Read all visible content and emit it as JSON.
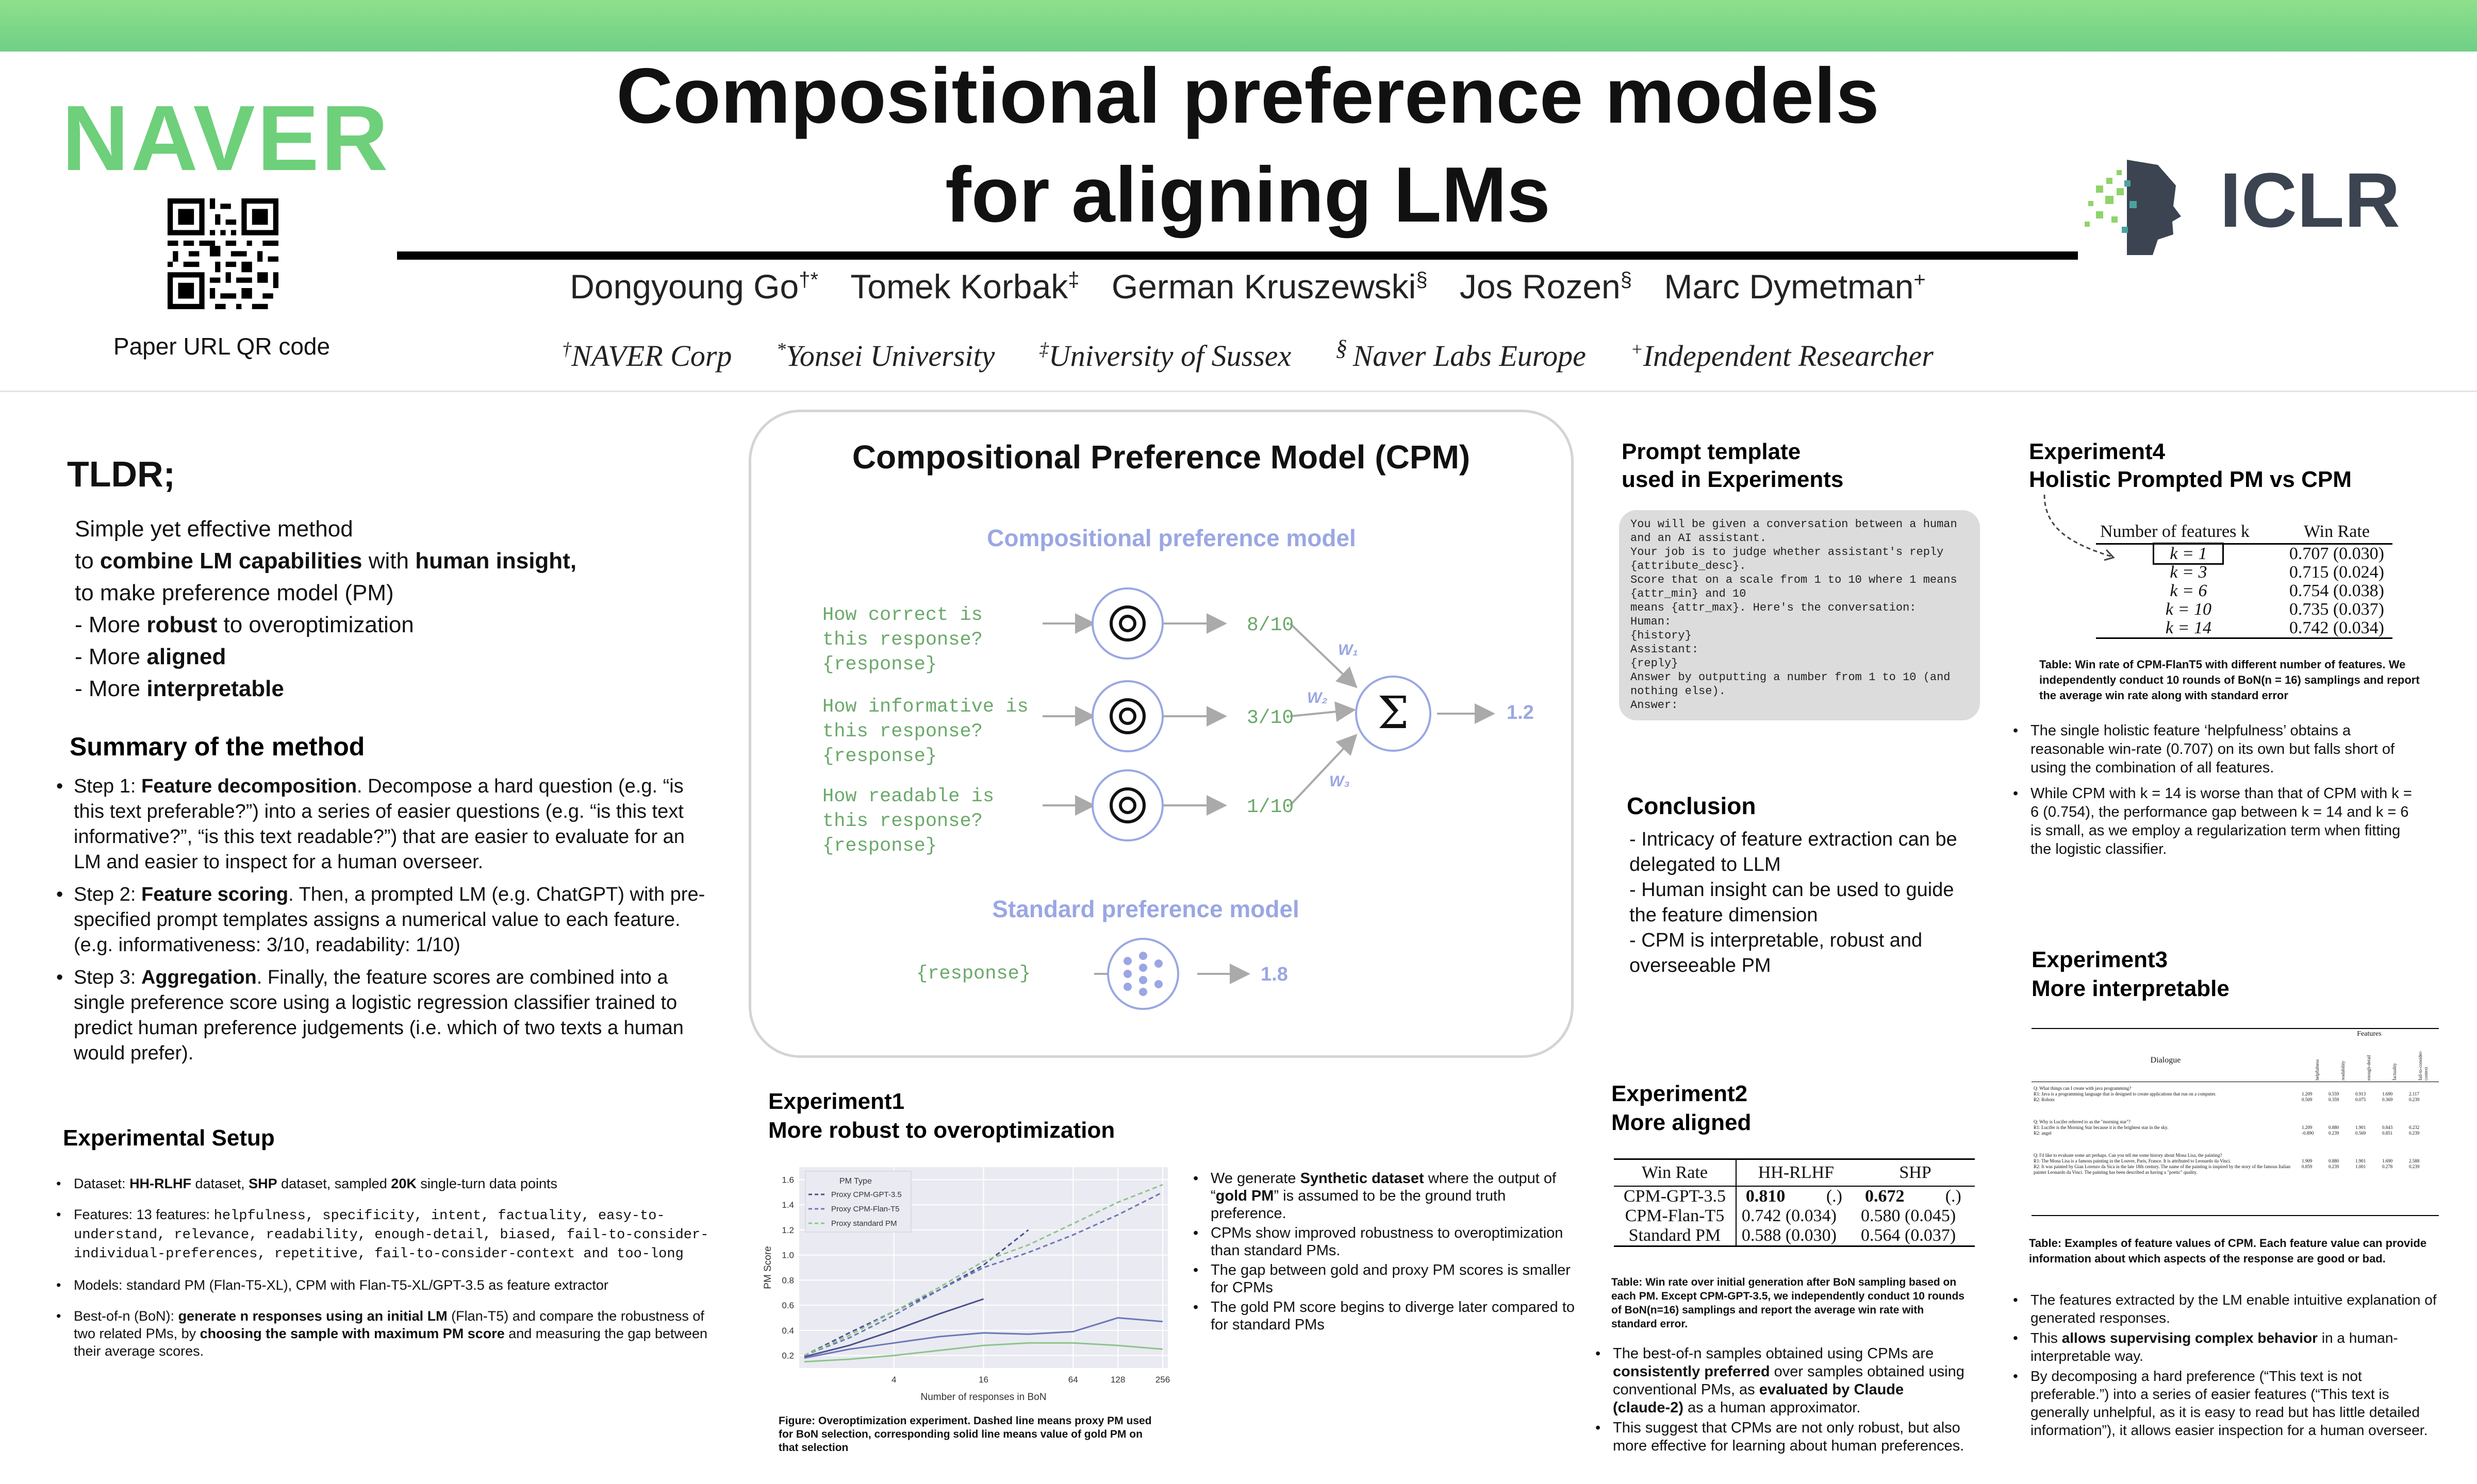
{
  "header": {
    "logo_left": "NAVER",
    "qr_caption": "Paper URL QR code",
    "title_line1": "Compositional preference models",
    "title_line2": "for aligning LMs",
    "authors": [
      "Dongyoung Go",
      "Tomek Korbak",
      "German Kruszewski",
      "Jos Rozen",
      "Marc Dymetman"
    ],
    "author_marks": [
      "†*",
      "‡",
      "§",
      "§",
      "+"
    ],
    "affiliations": [
      {
        "mark": "†",
        "name": "NAVER Corp"
      },
      {
        "mark": "*",
        "name": "Yonsei University"
      },
      {
        "mark": "‡",
        "name": "University of Sussex"
      },
      {
        "mark": "§ ",
        "name": "Naver Labs Europe"
      },
      {
        "mark": "+",
        "name": "Independent Researcher"
      }
    ],
    "logo_right": "ICLR",
    "colors": {
      "band": "#6fcf86",
      "naver": "#6ed07a",
      "iclr": "#3b4450"
    }
  },
  "tldr": {
    "heading": "TLDR;",
    "line1": "Simple yet effective method",
    "line2_pre": "to ",
    "line2_b1": "combine LM capabilities",
    "line2_mid": " with ",
    "line2_b2": "human insight,",
    "line3": "to make preference model (PM)",
    "b1_pre": "-  More ",
    "b1_bold": "robust",
    "b1_post": " to overoptimization",
    "b2_pre": "-  More ",
    "b2_bold": "aligned",
    "b3_pre": "-  More ",
    "b3_bold": "interpretable"
  },
  "summary": {
    "heading": "Summary of the method",
    "steps": [
      {
        "pre": "Step 1: ",
        "bold": "Feature decomposition",
        "post": ". Decompose a hard question (e.g. “is this text preferable?”) into a series of easier questions (e.g. “is this text informative?”, “is this text readable?”) that are easier to evaluate for an LM and easier to inspect for a human overseer."
      },
      {
        "pre": "Step 2: ",
        "bold": "Feature scoring",
        "post": ". Then, a prompted LM (e.g. ChatGPT) with pre-specified prompt templates assigns a numerical value to each feature. (e.g. informativeness: 3/10, readability: 1/10)"
      },
      {
        "pre": "Step 3: ",
        "bold": "Aggregation",
        "post": ". Finally, the feature scores are combined into a single preference score using a logistic regression classifier trained to predict human preference judgements (i.e. which of two texts a human would prefer)."
      }
    ]
  },
  "setup": {
    "heading": "Experimental Setup",
    "dataset_pre": "Dataset: ",
    "dataset_b1": "HH-RLHF",
    "dataset_mid": " dataset, ",
    "dataset_b2": "SHP",
    "dataset_mid2": " dataset, sampled ",
    "dataset_b3": "20K",
    "dataset_post": " single-turn data points",
    "features_pre": "Features: 13 features: ",
    "features_list": "helpfulness, specificity, intent, factuality, easy-to-understand, relevance, readability, enough-detail, biased, fail-to-consider-individual-preferences, repetitive, fail-to-consider-context and too-long",
    "models": "Models: standard PM (Flan-T5-XL), CPM with Flan-T5-XL/GPT-3.5 as feature extractor",
    "bon_pre": "Best-of-n (BoN): ",
    "bon_b1": "generate n responses using an initial LM",
    "bon_mid": " (Flan-T5) and compare the robustness of two related PMs, by ",
    "bon_b2": "choosing the sample with maximum PM score",
    "bon_post": " and measuring the gap between their average scores."
  },
  "cpm": {
    "title": "Compositional Preference Model (CPM)",
    "sub1": "Compositional preference model",
    "questions": [
      {
        "l1": "How correct is",
        "l2": "this response?",
        "l3": "{response}",
        "score": "8/10",
        "w": "W₁"
      },
      {
        "l1": "How informative is",
        "l2": "this response?",
        "l3": "{response}",
        "score": "3/10",
        "w": "W₂"
      },
      {
        "l1": "How readable is",
        "l2": "this response?",
        "l3": "{response}",
        "score": "1/10",
        "w": "W₃"
      }
    ],
    "sigma": "Σ",
    "out": "1.2",
    "sub2": "Standard preference model",
    "std_in": "{response}",
    "std_out": "1.8"
  },
  "prompt": {
    "heading1": "Prompt template",
    "heading2": "used in Experiments",
    "text": "You will be given a conversation between a human\nand an AI assistant.\nYour job is to judge whether assistant's reply\n{attribute_desc}.\nScore that on a scale from 1 to 10 where 1 means\n{attr_min} and 10\nmeans {attr_max}. Here's the conversation:\nHuman:\n{history}\nAssistant:\n{reply}\nAnswer by outputting a number from 1 to 10 (and\nnothing else).\nAnswer:"
  },
  "conclusion": {
    "heading": "Conclusion",
    "lines": [
      "- Intricacy of feature extraction can be delegated to LLM",
      "- Human insight can be used to guide the feature dimension",
      "- CPM is interpretable, robust and overseeable PM"
    ]
  },
  "exp4": {
    "heading1": "Experiment4",
    "heading2": "Holistic Prompted PM vs CPM",
    "col1": "Number of features k",
    "col2": "Win Rate",
    "rows": [
      [
        "k = 1",
        "0.707 (0.030)"
      ],
      [
        "k = 3",
        "0.715 (0.024)"
      ],
      [
        "k = 6",
        "0.754 (0.038)"
      ],
      [
        "k = 10",
        "0.735 (0.037)"
      ],
      [
        "k = 14",
        "0.742 (0.034)"
      ]
    ],
    "caption": "Table: Win rate of CPM-FlanT5 with different number of features. We independently conduct 10 rounds of BoN(n = 16) samplings and report the average win rate along with standard error",
    "bullets": [
      "The single holistic feature ‘helpfulness’ obtains a reasonable win-rate (0.707) on its own but falls short of using the combination of all features.",
      "While CPM with k = 14 is worse than that of CPM with k = 6 (0.754), the performance gap between k = 14 and k = 6 is small, as we employ a regularization term when fitting the logistic classifier."
    ]
  },
  "exp3": {
    "heading1": "Experiment3",
    "heading2": "More interpretable",
    "table_head_dialogue": "Dialogue",
    "table_head_features": "Features",
    "feature_cols": [
      "helpfulness",
      "readability",
      "enough-detail",
      "factuality",
      "fail-to-consider-context"
    ],
    "rows": [
      {
        "q": "Q: What things can I create with java programming?",
        "r1": "R1: Java is a programming language that is designed to create applications that run on a computer.",
        "r2": "R2: Robots",
        "v1": [
          "1.209",
          "0.559",
          "0.913",
          "1.690",
          "2.117"
        ],
        "v2": [
          "0.509",
          "0.359",
          "0.075",
          "0.369",
          "0.239"
        ]
      },
      {
        "q": "Q: Why is Lucifer referred to as the \"morning star\"?",
        "r1": "R1: Lucifer is the Morning Star because it is the brightest star in the sky.",
        "r2": "R2: angel",
        "v1": [
          "1.209",
          "0.880",
          "1.901",
          "0.843",
          "0.232"
        ],
        "v2": [
          "-0.890",
          "0.239",
          "0.569",
          "0.851",
          "0.239"
        ]
      },
      {
        "q": "Q: I'd like to evaluate some art perhaps. Can you tell me some history about Mona Lisa, the painting?",
        "r1": "R1: The Mona Lisa is a famous painting in the Louvre, Paris, France. It is attributed to Leonardo da Vinci.",
        "r2": "R2: It was painted by Gian Lorenzo da Sica in the late 18th century. The name of the painting is inspired by the story of the famous Italian painter Leonardo da Vinci. The painting has been described as having a \"poetic\" quality.",
        "v1": [
          "1.909",
          "0.880",
          "1.901",
          "1.690",
          "2.588"
        ],
        "v2": [
          "0.859",
          "0.239",
          "1.001",
          "0.278",
          "0.239"
        ]
      }
    ],
    "caption": "Table: Examples of feature values of CPM. Each feature value can provide information about which aspects of the response are good or bad.",
    "bullets": [
      {
        "pre": "The features extracted by the LM enable intuitive explanation of generated responses.",
        "bold": "",
        "post": ""
      },
      {
        "pre": "This ",
        "bold": "allows supervising complex behavior",
        "post": " in a human-interpretable way."
      },
      {
        "pre": "By decomposing a hard preference (“This text is not preferable.”) into a series of easier features (“This text is generally  unhelpful, as it is easy to read but has little detailed information”), it allows easier inspection for a human overseer.",
        "bold": "",
        "post": ""
      }
    ]
  },
  "exp1": {
    "heading1": "Experiment1",
    "heading2": "More robust to overoptimization",
    "caption": "Figure: Overoptimization experiment. Dashed line means proxy PM used for BoN selection, corresponding solid line means value of gold PM on that selection",
    "bullets": [
      {
        "pre": "We generate ",
        "bold": "Synthetic dataset",
        "mid": " where the output of “",
        "bold2": "gold PM",
        "post": "” is assumed to be the ground truth preference."
      },
      {
        "pre": "CPMs show improved robustness to overoptimization than standard PMs.",
        "bold": "",
        "mid": "",
        "bold2": "",
        "post": ""
      },
      {
        "pre": "The gap between gold and proxy PM scores is smaller for CPMs",
        "bold": "",
        "mid": "",
        "bold2": "",
        "post": ""
      },
      {
        "pre": "The gold PM score begins to diverge later compared to for standard PMs",
        "bold": "",
        "mid": "",
        "bold2": "",
        "post": ""
      }
    ]
  },
  "exp2": {
    "heading1": "Experiment2",
    "heading2": "More aligned",
    "cols": [
      "Win Rate",
      "HH-RLHF",
      "SHP"
    ],
    "rows": [
      [
        "CPM-GPT-3.5",
        "0.810",
        "(.)",
        "0.672",
        "(.)"
      ],
      [
        "CPM-Flan-T5",
        "0.742 (0.034)",
        "",
        "0.580 (0.045)",
        ""
      ],
      [
        "Standard PM",
        "0.588 (0.030)",
        "",
        "0.564 (0.037)",
        ""
      ]
    ],
    "caption": "Table: Win rate over initial generation after BoN sampling based on each PM. Except CPM-GPT-3.5, we independently conduct 10 rounds of BoN(n=16) samplings and report the average win rate with standard error.",
    "b1_pre": "The best-of-n samples obtained using CPMs are ",
    "b1_bold": "consistently preferred",
    "b1_mid": " over samples obtained using conventional PMs, as ",
    "b1_bold2": "evaluated by Claude (claude-2)",
    "b1_post": " as a human approximator.",
    "b2": "This suggest that CPMs are not only robust, but also more effective for learning about human preferences."
  },
  "chart_data": {
    "type": "line",
    "xlabel": "Number of responses in BoN",
    "ylabel": "PM Score",
    "x": [
      1,
      2,
      4,
      8,
      16,
      32,
      64,
      128,
      256
    ],
    "xticks": [
      "4",
      "16",
      "64",
      "128",
      "256"
    ],
    "yticks": [
      "0.2",
      "0.4",
      "0.6",
      "0.8",
      "1.0",
      "1.2",
      "1.4",
      "1.6"
    ],
    "ylim": [
      0.1,
      1.7
    ],
    "legend_title": "PM Type",
    "legend_position": "top-left",
    "series": [
      {
        "name": "Proxy CPM-GPT-3.5",
        "style": "dashed",
        "color": "#4a4f8c",
        "values": [
          0.2,
          0.38,
          0.55,
          0.72,
          0.92,
          1.2,
          null,
          null,
          null
        ]
      },
      {
        "name": "Proxy CPM-Flan-T5",
        "style": "dashed",
        "color": "#6a78b8",
        "values": [
          0.2,
          0.34,
          0.52,
          0.72,
          0.9,
          1.02,
          1.16,
          1.32,
          1.5
        ]
      },
      {
        "name": "Proxy standard PM",
        "style": "dashed",
        "color": "#8cc58a",
        "values": [
          0.2,
          0.36,
          0.55,
          0.74,
          0.95,
          1.08,
          1.25,
          1.42,
          1.56
        ]
      },
      {
        "name": "",
        "style": "solid",
        "color": "#4a4f8c",
        "values": [
          0.19,
          0.28,
          0.4,
          0.53,
          0.65,
          null,
          null,
          null,
          null
        ]
      },
      {
        "name": "",
        "style": "solid",
        "color": "#6a78b8",
        "values": [
          0.18,
          0.25,
          0.3,
          0.35,
          0.38,
          0.37,
          0.39,
          0.5,
          0.47
        ]
      },
      {
        "name": "",
        "style": "solid",
        "color": "#8cc58a",
        "values": [
          0.15,
          0.17,
          0.2,
          0.24,
          0.28,
          0.3,
          0.3,
          0.28,
          0.25
        ]
      }
    ]
  }
}
